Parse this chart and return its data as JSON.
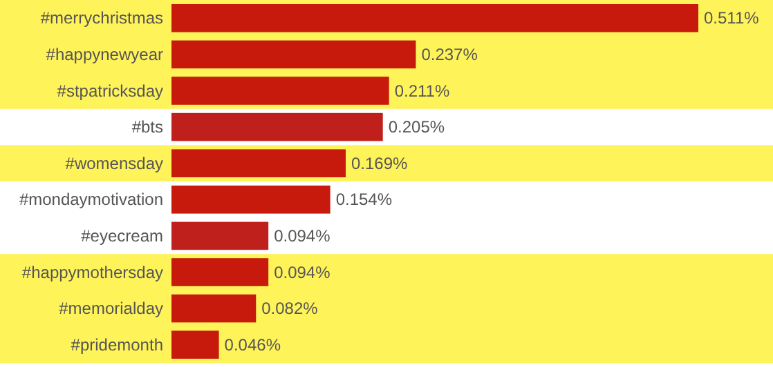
{
  "chart_data": {
    "type": "bar",
    "orientation": "horizontal",
    "categories": [
      "#merrychristmas",
      "#happynewyear",
      "#stpatricksday",
      "#bts",
      "#womensday",
      "#mondaymotivation",
      "#eyecream",
      "#happymothersday",
      "#memorialday",
      "#pridemonth"
    ],
    "values": [
      0.511,
      0.237,
      0.211,
      0.205,
      0.169,
      0.154,
      0.094,
      0.094,
      0.082,
      0.046
    ],
    "value_labels": [
      "0.511%",
      "0.237%",
      "0.211%",
      "0.205%",
      "0.169%",
      "0.154%",
      "0.094%",
      "0.094%",
      "0.082%",
      "0.046%"
    ],
    "colors": [
      "#c81a0c",
      "#c81a0c",
      "#c81a0c",
      "#c0201c",
      "#c81a0c",
      "#c81a0c",
      "#c0201c",
      "#c81a0c",
      "#c81a0c",
      "#c81a0c"
    ],
    "bands": [
      {
        "axis": "y",
        "from": "#merrychristmas",
        "to": "#stpatricksday",
        "color": "#fff35a"
      },
      {
        "axis": "y",
        "from": "#womensday",
        "to": "#womensday",
        "color": "#fff35a"
      },
      {
        "axis": "y",
        "from": "#happymothersday",
        "to": "#pridemonth",
        "color": "#fff35a"
      }
    ]
  }
}
